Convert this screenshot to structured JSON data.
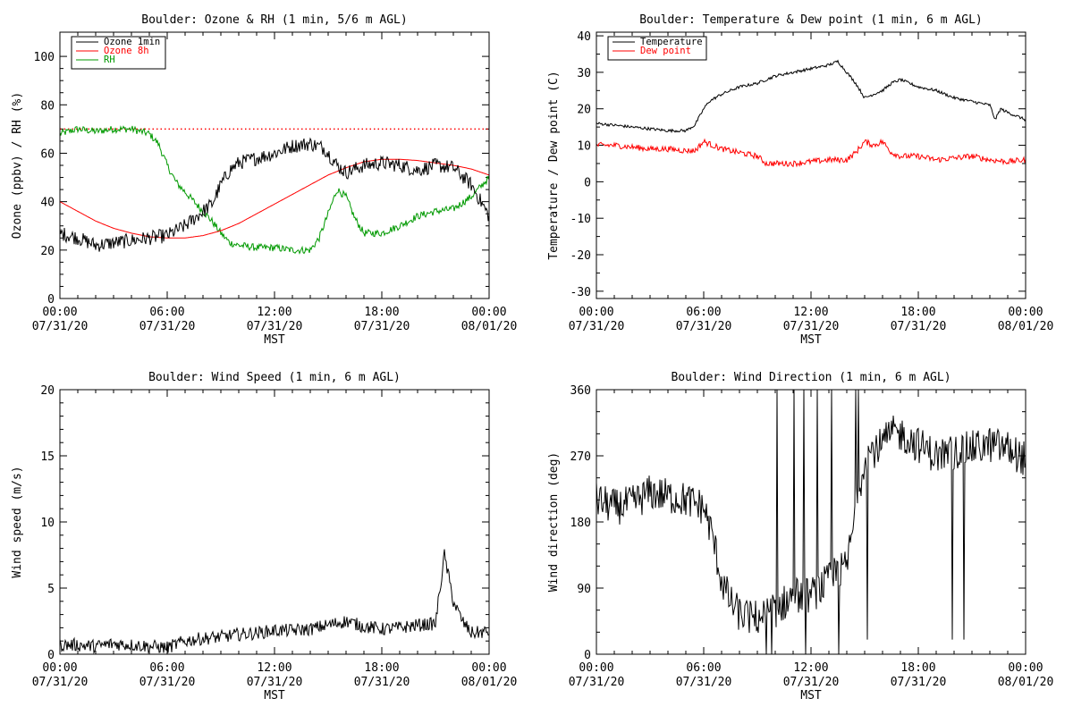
{
  "panels": [
    {
      "id": "ozone",
      "title": "Boulder: Ozone & RH (1 min, 5/6 m AGL)",
      "ylabel": "Ozone (ppbv) / RH (%)",
      "xlabel": "MST"
    },
    {
      "id": "temp",
      "title": "Boulder: Temperature & Dew point (1 min, 6 m AGL)",
      "ylabel": "Temperature / Dew point (C)",
      "xlabel": "MST"
    },
    {
      "id": "wspd",
      "title": "Boulder: Wind Speed (1 min, 6 m AGL)",
      "ylabel": "Wind speed (m/s)",
      "xlabel": "MST"
    },
    {
      "id": "wdir",
      "title": "Boulder: Wind Direction (1 min, 6 m AGL)",
      "ylabel": "Wind direction (deg)",
      "xlabel": "MST"
    }
  ],
  "x_ticks": [
    {
      "time": "00:00",
      "date": "07/31/20",
      "hour": 0
    },
    {
      "time": "06:00",
      "date": "07/31/20",
      "hour": 6
    },
    {
      "time": "12:00",
      "date": "07/31/20",
      "hour": 12
    },
    {
      "time": "18:00",
      "date": "07/31/20",
      "hour": 18
    },
    {
      "time": "00:00",
      "date": "08/01/20",
      "hour": 24
    }
  ],
  "chart_data": [
    {
      "type": "line",
      "title": "Boulder: Ozone & RH (1 min, 5/6 m AGL)",
      "xlabel": "MST",
      "ylabel": "Ozone (ppbv) / RH (%)",
      "xlim": [
        0,
        24
      ],
      "ylim": [
        0,
        110
      ],
      "yticks": [
        0,
        20,
        40,
        60,
        80,
        100
      ],
      "legend_position": "top-left",
      "reference_line": {
        "y": 70,
        "color": "#ff0000",
        "style": "dotted"
      },
      "series": [
        {
          "name": "Ozone 1min",
          "color": "#000000",
          "noise": 3,
          "x": [
            0,
            1,
            2,
            3,
            4,
            5,
            6,
            7,
            7.5,
            8,
            8.5,
            9,
            9.5,
            10,
            11,
            12,
            13,
            14,
            14.8,
            15.5,
            16,
            17,
            18,
            19,
            20,
            21,
            22,
            23,
            24
          ],
          "y": [
            27,
            25,
            22,
            23,
            24,
            25,
            26,
            30,
            33,
            36,
            39,
            47,
            53,
            56,
            58,
            60,
            63,
            64,
            62,
            55,
            52,
            55,
            56,
            55,
            53,
            55,
            54,
            47,
            34
          ]
        },
        {
          "name": "Ozone 8h",
          "color": "#ff0000",
          "noise": 0,
          "x": [
            0,
            1,
            2,
            3,
            4,
            5,
            6,
            7,
            8,
            9,
            10,
            11,
            12,
            13,
            14,
            15,
            16,
            17,
            18,
            19,
            20,
            21,
            22,
            23,
            24
          ],
          "y": [
            40,
            36,
            32,
            29,
            27,
            25.5,
            25,
            25,
            26,
            28,
            31,
            35,
            39,
            43,
            47,
            51,
            54,
            56.5,
            57.5,
            57.5,
            57,
            56,
            55,
            53.5,
            51
          ]
        },
        {
          "name": "RH",
          "color": "#009900",
          "noise": 1.5,
          "x": [
            0,
            1,
            2,
            3,
            4,
            5,
            5.5,
            6,
            6.5,
            7,
            7.5,
            8,
            8.5,
            9,
            9.5,
            10,
            11,
            12,
            13,
            14,
            14.5,
            15,
            15.5,
            16,
            16.5,
            17,
            18,
            19,
            20,
            21,
            22,
            23,
            24
          ],
          "y": [
            68,
            70,
            69,
            70,
            70,
            68,
            64,
            55,
            48,
            44,
            40,
            36,
            32,
            27,
            23,
            22,
            21,
            21,
            20,
            20,
            25,
            35,
            45,
            42,
            33,
            27,
            27,
            30,
            34,
            36,
            37,
            42,
            50
          ]
        }
      ]
    },
    {
      "type": "line",
      "title": "Boulder: Temperature & Dew point (1 min, 6 m AGL)",
      "xlabel": "MST",
      "ylabel": "Temperature / Dew point (C)",
      "xlim": [
        0,
        24
      ],
      "ylim": [
        -32,
        41
      ],
      "yticks": [
        -30,
        -20,
        -10,
        0,
        10,
        20,
        30,
        40
      ],
      "legend_position": "top-left",
      "series": [
        {
          "name": "Temperature",
          "color": "#000000",
          "noise": 0.4,
          "x": [
            0,
            1,
            2,
            3,
            4,
            5,
            5.5,
            6,
            6.3,
            7,
            8,
            9,
            10,
            11,
            12,
            13,
            13.5,
            14,
            14.5,
            15,
            15.5,
            16,
            16.5,
            17,
            17.5,
            18,
            19,
            20,
            21,
            22,
            22.3,
            22.6,
            23,
            24
          ],
          "y": [
            16,
            15.5,
            15,
            14.5,
            14,
            14,
            15.5,
            20,
            22,
            24,
            26,
            27,
            29,
            30,
            31,
            32,
            33,
            30,
            27,
            23,
            24,
            25,
            27,
            28,
            27,
            26,
            25,
            23,
            22,
            21,
            17,
            20,
            19,
            17
          ]
        },
        {
          "name": "Dew point",
          "color": "#ff0000",
          "noise": 0.8,
          "x": [
            0,
            1,
            2,
            3,
            4,
            5,
            5.5,
            6,
            6.5,
            7,
            8,
            9,
            9.5,
            10,
            11,
            12,
            13,
            14,
            14.5,
            15,
            15.5,
            16,
            16.5,
            17,
            18,
            19,
            20,
            21,
            22,
            23,
            24
          ],
          "y": [
            10,
            10,
            9.5,
            9,
            9,
            8.5,
            8.5,
            11,
            10,
            9,
            8,
            7,
            5,
            5,
            5,
            5.5,
            6,
            6,
            8,
            11,
            10,
            11,
            8,
            7,
            7,
            6,
            6.5,
            7,
            6,
            5.5,
            6
          ]
        }
      ]
    },
    {
      "type": "line",
      "title": "Boulder: Wind Speed (1 min, 6 m AGL)",
      "xlabel": "MST",
      "ylabel": "Wind speed (m/s)",
      "xlim": [
        0,
        24
      ],
      "ylim": [
        0,
        20
      ],
      "yticks": [
        0,
        5,
        10,
        15,
        20
      ],
      "series": [
        {
          "name": "",
          "color": "#000000",
          "noise": 0.5,
          "x": [
            0,
            1,
            2,
            3,
            4,
            5,
            6,
            7,
            8,
            9,
            10,
            11,
            12,
            13,
            14,
            15,
            16,
            17,
            18,
            19,
            20,
            21,
            21.5,
            22,
            22.5,
            23,
            24
          ],
          "y": [
            0.7,
            0.7,
            0.6,
            0.8,
            0.7,
            0.6,
            0.5,
            1.0,
            1.2,
            1.3,
            1.5,
            1.6,
            1.8,
            1.8,
            1.9,
            2.2,
            2.5,
            2.1,
            1.9,
            2.0,
            2.2,
            2.3,
            7.5,
            4.0,
            2.5,
            1.6,
            1.7
          ]
        }
      ]
    },
    {
      "type": "line",
      "title": "Boulder: Wind Direction (1 min, 6 m AGL)",
      "xlabel": "MST",
      "ylabel": "Wind direction (deg)",
      "xlim": [
        0,
        24
      ],
      "ylim": [
        0,
        360
      ],
      "yticks": [
        0,
        90,
        180,
        270,
        360
      ],
      "series": [
        {
          "name": "",
          "color": "#000000",
          "noise": 25,
          "x": [
            0,
            1,
            2,
            3,
            4,
            5,
            6,
            6.5,
            7,
            7.5,
            8,
            8.5,
            9,
            10,
            11,
            12,
            13,
            14,
            15,
            16,
            16.5,
            17,
            18,
            19,
            20,
            21,
            22,
            23,
            24
          ],
          "y": [
            210,
            200,
            205,
            220,
            215,
            210,
            200,
            160,
            100,
            70,
            55,
            50,
            50,
            60,
            80,
            80,
            100,
            120,
            270,
            285,
            300,
            300,
            285,
            270,
            275,
            280,
            285,
            280,
            265
          ]
        }
      ]
    }
  ]
}
